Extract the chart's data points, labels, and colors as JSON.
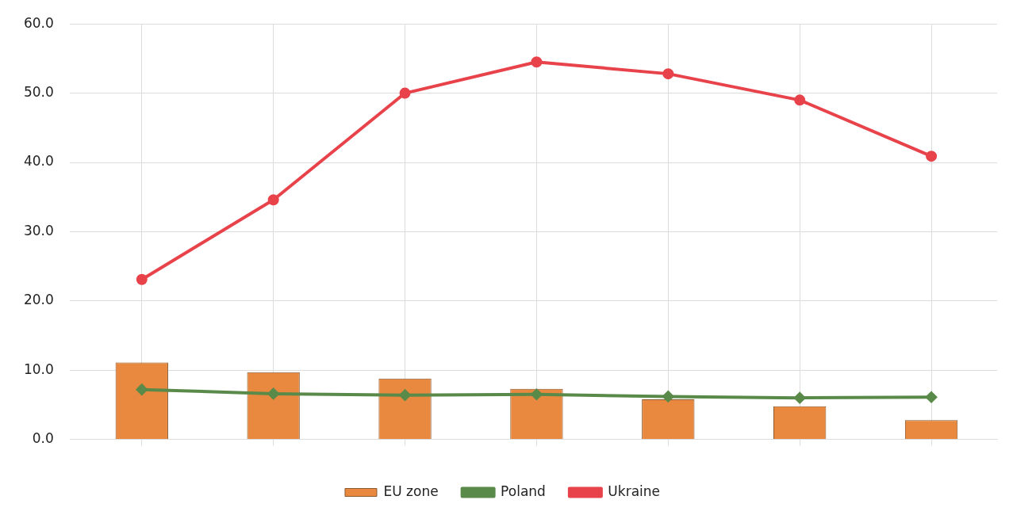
{
  "chart_data": {
    "type": "bar",
    "categories": [
      null,
      null,
      null,
      null,
      null,
      null,
      null
    ],
    "series": [
      {
        "name": "EU zone",
        "color": "#e8893f",
        "values": [
          11.1,
          9.7,
          8.8,
          7.3,
          5.8,
          4.8,
          2.8
        ]
      },
      {
        "name": "Poland",
        "type": "line",
        "color": "#5a8a4a",
        "marker": "diamond",
        "values": [
          7.2,
          6.6,
          6.4,
          6.5,
          6.2,
          6.0,
          6.1
        ]
      },
      {
        "name": "Ukraine",
        "type": "line",
        "color": "#e8424a",
        "marker": "circle",
        "values": [
          23.1,
          34.6,
          50.0,
          54.5,
          52.8,
          49.0,
          40.9
        ]
      }
    ],
    "ylim": [
      0,
      60
    ],
    "yticks": [
      {
        "value": 0,
        "label": "0.0"
      },
      {
        "value": 10,
        "label": "10.0"
      },
      {
        "value": 20,
        "label": "20.0"
      },
      {
        "value": 30,
        "label": "30.0"
      },
      {
        "value": 40,
        "label": "40.0"
      },
      {
        "value": 50,
        "label": "50.0"
      },
      {
        "value": 60,
        "label": "60.0"
      }
    ],
    "grid": true,
    "legend": "bottom"
  }
}
